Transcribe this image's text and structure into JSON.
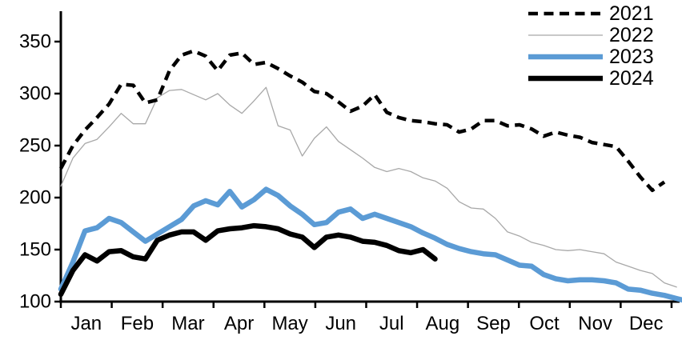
{
  "chart_data": {
    "type": "line",
    "title": "",
    "xlabel": "",
    "ylabel": "",
    "x_unit": "weekly",
    "x_tick_labels": [
      "Jan",
      "Feb",
      "Mar",
      "Apr",
      "May",
      "Jun",
      "Jul",
      "Aug",
      "Sep",
      "Oct",
      "Nov",
      "Dec"
    ],
    "y_ticks": [
      100,
      150,
      200,
      250,
      300,
      350
    ],
    "ylim": [
      100,
      380
    ],
    "grid": false,
    "legend_position": "top-right",
    "axis_color": "#000000",
    "background_color": "#ffffff",
    "series": [
      {
        "name": "2021",
        "color": "#000000",
        "style": "dashed",
        "width": 4.5,
        "values": [
          228,
          250,
          265,
          277,
          290,
          309,
          308,
          291,
          294,
          322,
          337,
          341,
          336,
          322,
          337,
          339,
          328,
          330,
          324,
          317,
          311,
          302,
          300,
          292,
          283,
          288,
          299,
          282,
          277,
          274,
          273,
          271,
          270,
          263,
          266,
          274,
          274,
          269,
          270,
          266,
          259,
          263,
          260,
          258,
          253,
          251,
          249,
          235,
          220,
          207,
          215
        ]
      },
      {
        "name": "2022",
        "color": "#a8a8a8",
        "style": "solid",
        "width": 1.3,
        "values": [
          211,
          238,
          252,
          256,
          268,
          281,
          271,
          271,
          296,
          303,
          304,
          299,
          294,
          300,
          289,
          281,
          293,
          306,
          269,
          265,
          240,
          257,
          268,
          254,
          246,
          238,
          229,
          225,
          228,
          225,
          219,
          216,
          209,
          196,
          190,
          189,
          180,
          167,
          163,
          157,
          154,
          150,
          149,
          150,
          148,
          146,
          138,
          134,
          130,
          127,
          118,
          114
        ]
      },
      {
        "name": "2023",
        "color": "#5b9bd5",
        "style": "solid",
        "width": 6.5,
        "values": [
          112,
          138,
          168,
          171,
          180,
          176,
          167,
          158,
          165,
          172,
          179,
          192,
          197,
          193,
          206,
          191,
          198,
          208,
          202,
          192,
          184,
          174,
          176,
          186,
          189,
          180,
          184,
          180,
          176,
          172,
          166,
          161,
          155,
          151,
          148,
          146,
          145,
          140,
          135,
          134,
          126,
          122,
          120,
          121,
          121,
          120,
          118,
          112,
          111,
          108,
          106,
          103,
          100
        ]
      },
      {
        "name": "2024",
        "color": "#000000",
        "style": "solid",
        "width": 6.5,
        "values": [
          107,
          130,
          145,
          139,
          148,
          149,
          143,
          141,
          159,
          164,
          167,
          167,
          159,
          168,
          170,
          171,
          173,
          172,
          170,
          165,
          162,
          152,
          162,
          164,
          162,
          158,
          157,
          154,
          149,
          147,
          150,
          141
        ]
      }
    ]
  }
}
